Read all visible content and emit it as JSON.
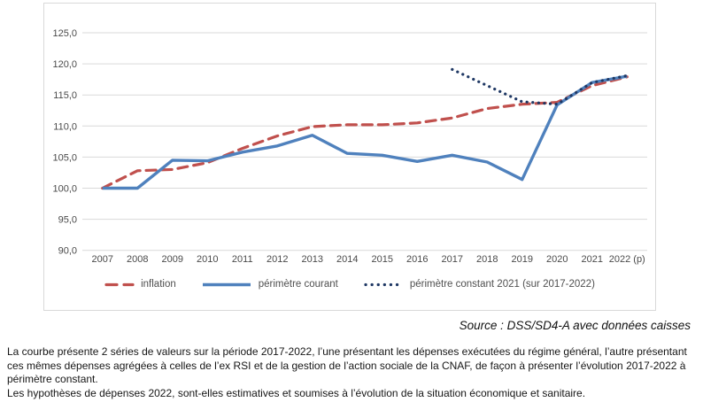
{
  "chart_data": {
    "type": "line",
    "title": "",
    "xlabel": "",
    "ylabel": "",
    "categories": [
      "2007",
      "2008",
      "2009",
      "2010",
      "2011",
      "2012",
      "2013",
      "2014",
      "2015",
      "2016",
      "2017",
      "2018",
      "2019",
      "2020",
      "2021",
      "2022 (p)"
    ],
    "series": [
      {
        "name": "inflation",
        "color": "#C0504D",
        "style": "dashed",
        "values": [
          100.0,
          102.8,
          103.0,
          104.1,
          106.4,
          108.4,
          109.9,
          110.2,
          110.2,
          110.5,
          111.3,
          112.8,
          113.5,
          113.8,
          116.5,
          117.9
        ]
      },
      {
        "name": "périmètre courant",
        "color": "#4F81BD",
        "style": "solid",
        "values": [
          100.0,
          100.0,
          104.5,
          104.4,
          105.8,
          106.8,
          108.5,
          105.6,
          105.3,
          104.3,
          105.3,
          104.2,
          101.4,
          113.4,
          117.0,
          118.0
        ]
      },
      {
        "name": "périmètre constant 2021 (sur 2017-2022)",
        "color": "#1F3864",
        "style": "dotted",
        "values": [
          null,
          null,
          null,
          null,
          null,
          null,
          null,
          null,
          null,
          null,
          119.1,
          116.5,
          113.9,
          113.5,
          117.0,
          118.1
        ]
      }
    ],
    "ylim": [
      90,
      125
    ],
    "ytick_step": 5,
    "ytick_format": "comma-decimal-1",
    "grid": true,
    "gridline_color": "#d9d9d9",
    "legend_position": "bottom"
  },
  "source_note": "Source : DSS/SD4-A avec données caisses",
  "description": {
    "paragraph1": "La courbe présente 2 séries de valeurs sur la période 2017-2022, l’une présentant les dépenses exécutées du régime général, l’autre présentant ces mêmes dépenses agrégées à celles de l’ex RSI et de la gestion de l’action sociale de la CNAF, de façon à présenter l’évolution 2017-2022 à périmètre constant.",
    "paragraph2": "Les hypothèses de dépenses 2022, sont-elles estimatives et soumises à l’évolution de la situation économique et sanitaire."
  }
}
